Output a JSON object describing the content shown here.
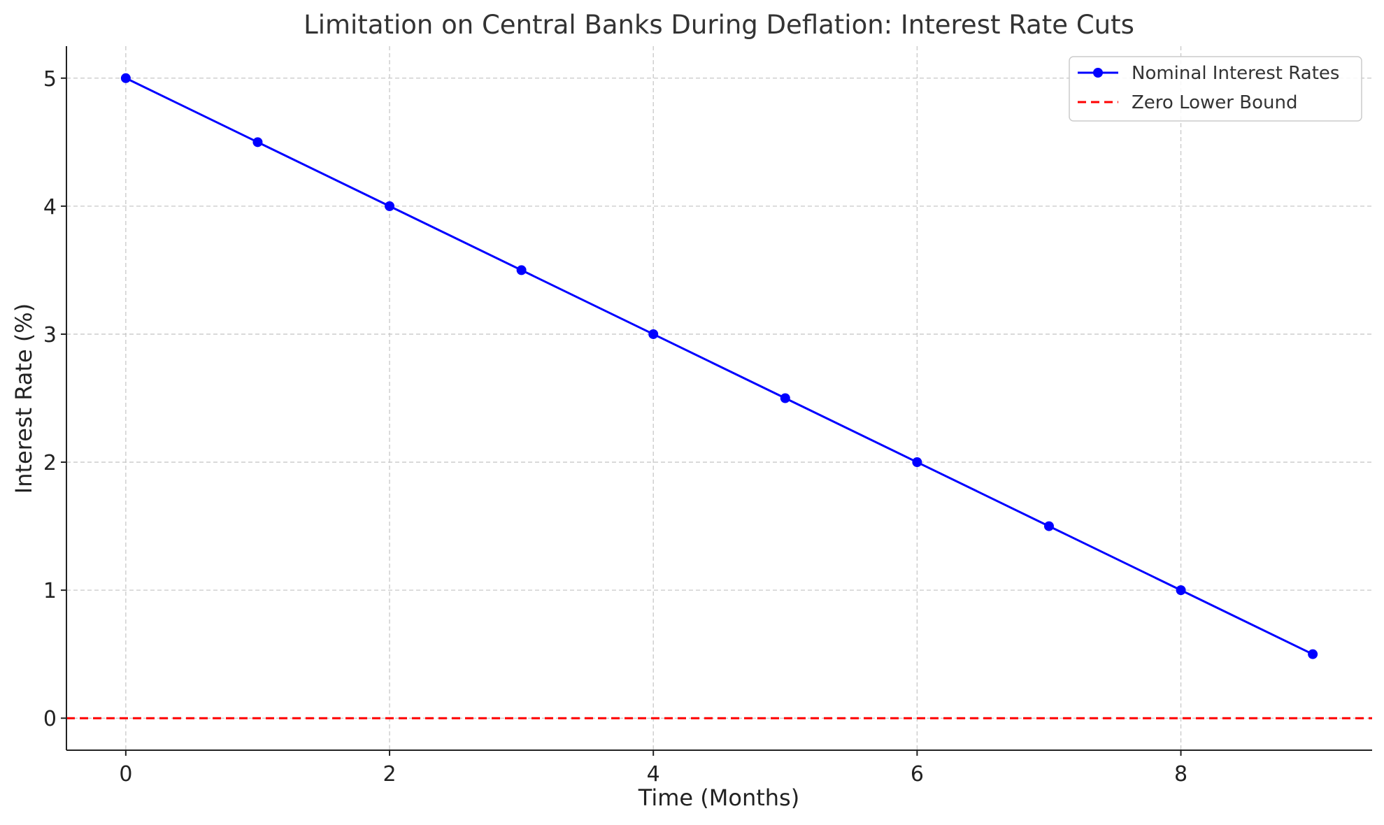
{
  "chart_data": {
    "type": "line",
    "title": "Limitation on Central Banks During Deflation: Interest Rate Cuts",
    "xlabel": "Time (Months)",
    "ylabel": "Interest Rate (%)",
    "xlim": [
      -0.45,
      9.45
    ],
    "ylim": [
      -0.25,
      5.25
    ],
    "xticks": [
      0,
      2,
      4,
      6,
      8
    ],
    "yticks": [
      0,
      1,
      2,
      3,
      4,
      5
    ],
    "grid": true,
    "legend_position": "top-right",
    "x": [
      0,
      1,
      2,
      3,
      4,
      5,
      6,
      7,
      8,
      9
    ],
    "series": [
      {
        "name": "Nominal Interest Rates",
        "values": [
          5.0,
          4.5,
          4.0,
          3.5,
          3.0,
          2.5,
          2.0,
          1.5,
          1.0,
          0.5
        ],
        "color": "#0000ff",
        "marker": "circle",
        "line_style": "solid"
      }
    ],
    "reference_lines": [
      {
        "name": "Zero Lower Bound",
        "y": 0,
        "color": "#ff0000",
        "line_style": "dashed"
      }
    ]
  }
}
